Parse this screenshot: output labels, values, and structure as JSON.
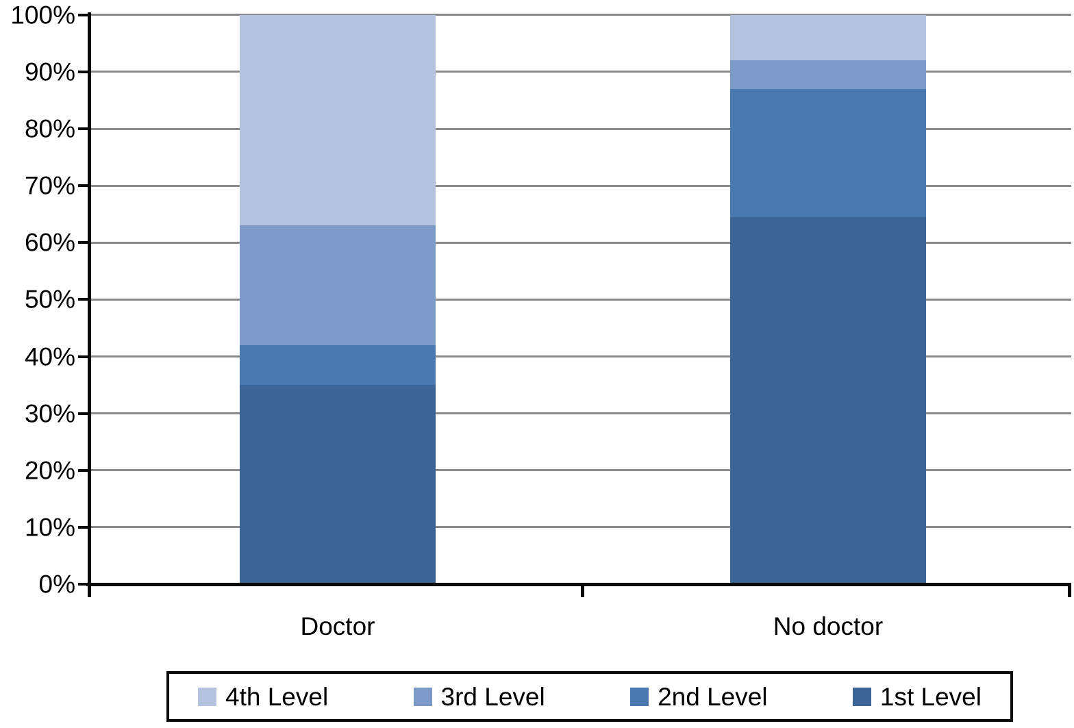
{
  "chart_data": {
    "type": "bar",
    "stacked": true,
    "percent_stacked": true,
    "title": "",
    "xlabel": "",
    "ylabel": "",
    "categories": [
      "Doctor",
      "No doctor"
    ],
    "series": [
      {
        "name": "1st Level",
        "color": "#3C6497",
        "values": [
          35,
          64.5
        ]
      },
      {
        "name": "2nd Level",
        "color": "#4A79B2",
        "values": [
          7,
          22.5
        ]
      },
      {
        "name": "3rd Level",
        "color": "#7D9AC9",
        "values": [
          21,
          5
        ]
      },
      {
        "name": "4th Level",
        "color": "#B4C2DE",
        "values": [
          37,
          8
        ]
      }
    ],
    "ylim": [
      0,
      100
    ],
    "yticks": [
      "0%",
      "10%",
      "20%",
      "30%",
      "40%",
      "50%",
      "60%",
      "70%",
      "80%",
      "90%",
      "100%"
    ],
    "grid": true,
    "gridline_color": "#8a8a8a",
    "axis_color": "#0a0a0a",
    "legend_position": "bottom",
    "legend_order_series_indexes": [
      3,
      2,
      1,
      0
    ]
  }
}
